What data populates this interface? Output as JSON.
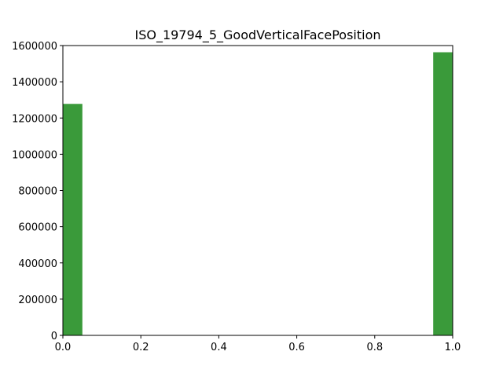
{
  "chart_data": {
    "type": "bar",
    "title": "ISO_19794_5_GoodVerticalFacePosition",
    "xlabel": "",
    "ylabel": "",
    "xlim": [
      0.0,
      1.0
    ],
    "ylim": [
      0,
      1600000
    ],
    "grid": false,
    "bar_color": "#3a9a3a",
    "bins": [
      {
        "x_start": 0.0,
        "x_end": 0.05,
        "value": 1278000
      },
      {
        "x_start": 0.95,
        "x_end": 1.0,
        "value": 1563000
      }
    ],
    "x_ticks": [
      {
        "value": 0.0,
        "label": "0.0"
      },
      {
        "value": 0.2,
        "label": "0.2"
      },
      {
        "value": 0.4,
        "label": "0.4"
      },
      {
        "value": 0.6,
        "label": "0.6"
      },
      {
        "value": 0.8,
        "label": "0.8"
      },
      {
        "value": 1.0,
        "label": "1.0"
      }
    ],
    "y_ticks": [
      {
        "value": 0,
        "label": "0"
      },
      {
        "value": 200000,
        "label": "200000"
      },
      {
        "value": 400000,
        "label": "400000"
      },
      {
        "value": 600000,
        "label": "600000"
      },
      {
        "value": 800000,
        "label": "800000"
      },
      {
        "value": 1000000,
        "label": "1000000"
      },
      {
        "value": 1200000,
        "label": "1200000"
      },
      {
        "value": 1400000,
        "label": "1400000"
      },
      {
        "value": 1600000,
        "label": "1600000"
      }
    ]
  }
}
